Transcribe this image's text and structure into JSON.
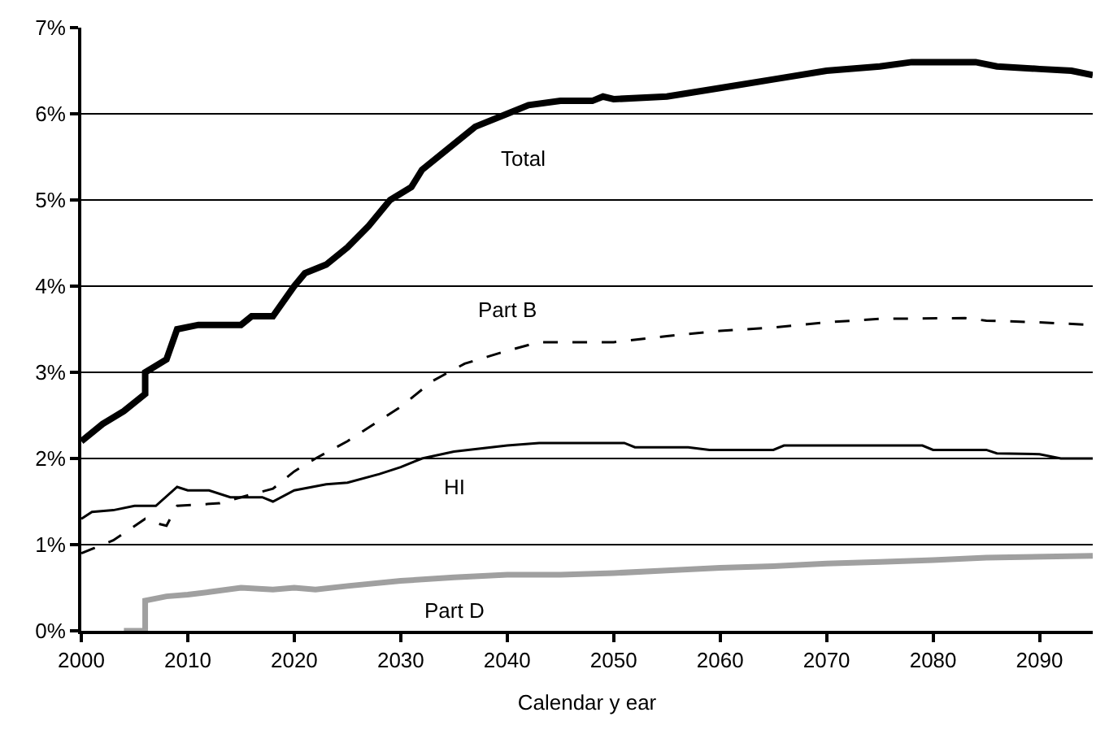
{
  "chart_data": {
    "type": "line",
    "xlabel": "Calendar y ear",
    "xlim": [
      2000,
      2095
    ],
    "xticks": [
      2000,
      2010,
      2020,
      2030,
      2040,
      2050,
      2060,
      2070,
      2080,
      2090
    ],
    "ylim": [
      0,
      7
    ],
    "yticks": [
      {
        "value": 0,
        "label": "0%"
      },
      {
        "value": 1,
        "label": "1%"
      },
      {
        "value": 2,
        "label": "2%"
      },
      {
        "value": 3,
        "label": "3%"
      },
      {
        "value": 4,
        "label": "4%"
      },
      {
        "value": 5,
        "label": "5%"
      },
      {
        "value": 6,
        "label": "6%"
      },
      {
        "value": 7,
        "label": "7%"
      }
    ],
    "grid": "y",
    "legend": false,
    "marker": "none",
    "series": [
      {
        "name": "Total",
        "color": "#000000",
        "line_style": "solid",
        "x": [
          2000,
          2002,
          2004,
          2005,
          2006,
          2006,
          2008,
          2009,
          2011,
          2015,
          2016,
          2018,
          2020,
          2021,
          2023,
          2025,
          2027,
          2029,
          2031,
          2032,
          2035,
          2037,
          2040,
          2042,
          2045,
          2048,
          2049,
          2050,
          2055,
          2060,
          2065,
          2070,
          2075,
          2078,
          2084,
          2086,
          2090,
          2093,
          2095
        ],
        "values": [
          2.2,
          2.4,
          2.55,
          2.65,
          2.75,
          3.0,
          3.15,
          3.5,
          3.55,
          3.55,
          3.65,
          3.65,
          4.0,
          4.15,
          4.25,
          4.45,
          4.7,
          5.0,
          5.15,
          5.35,
          5.65,
          5.85,
          6.0,
          6.1,
          6.15,
          6.15,
          6.2,
          6.17,
          6.2,
          6.3,
          6.4,
          6.5,
          6.55,
          6.6,
          6.6,
          6.55,
          6.52,
          6.5,
          6.45
        ]
      },
      {
        "name": "Part B",
        "color": "#000000",
        "line_style": "dashed",
        "x": [
          2000,
          2003,
          2006,
          2007,
          2008,
          2009,
          2013,
          2015,
          2018,
          2020,
          2022,
          2025,
          2030,
          2033,
          2036,
          2040,
          2043,
          2050,
          2055,
          2060,
          2065,
          2070,
          2075,
          2083,
          2085,
          2090,
          2095
        ],
        "values": [
          0.9,
          1.05,
          1.3,
          1.25,
          1.22,
          1.45,
          1.48,
          1.55,
          1.65,
          1.85,
          2.0,
          2.2,
          2.6,
          2.9,
          3.1,
          3.25,
          3.35,
          3.35,
          3.42,
          3.48,
          3.52,
          3.58,
          3.62,
          3.63,
          3.6,
          3.58,
          3.55
        ]
      },
      {
        "name": "HI",
        "color": "#000000",
        "line_style": "solid",
        "x": [
          2000,
          2001,
          2003,
          2005,
          2007,
          2009,
          2010,
          2012,
          2014,
          2017,
          2018,
          2020,
          2023,
          2025,
          2028,
          2030,
          2032,
          2035,
          2040,
          2043,
          2051,
          2052,
          2057,
          2059,
          2065,
          2066,
          2079,
          2080,
          2085,
          2086,
          2090,
          2092,
          2095
        ],
        "values": [
          1.3,
          1.38,
          1.4,
          1.45,
          1.45,
          1.67,
          1.63,
          1.63,
          1.55,
          1.55,
          1.5,
          1.63,
          1.7,
          1.72,
          1.82,
          1.9,
          2.0,
          2.08,
          2.15,
          2.18,
          2.18,
          2.13,
          2.13,
          2.1,
          2.1,
          2.15,
          2.15,
          2.1,
          2.1,
          2.06,
          2.05,
          2.0,
          2.0
        ]
      },
      {
        "name": "Part D",
        "color": "#a0a0a0",
        "line_style": "solid",
        "x": [
          2004,
          2006,
          2006,
          2008,
          2010,
          2012,
          2015,
          2018,
          2020,
          2022,
          2025,
          2030,
          2035,
          2040,
          2045,
          2050,
          2055,
          2060,
          2065,
          2070,
          2075,
          2080,
          2085,
          2095
        ],
        "values": [
          0,
          0,
          0.35,
          0.4,
          0.42,
          0.45,
          0.5,
          0.48,
          0.5,
          0.48,
          0.52,
          0.58,
          0.62,
          0.65,
          0.65,
          0.67,
          0.7,
          0.73,
          0.75,
          0.78,
          0.8,
          0.82,
          0.85,
          0.87
        ]
      }
    ]
  }
}
